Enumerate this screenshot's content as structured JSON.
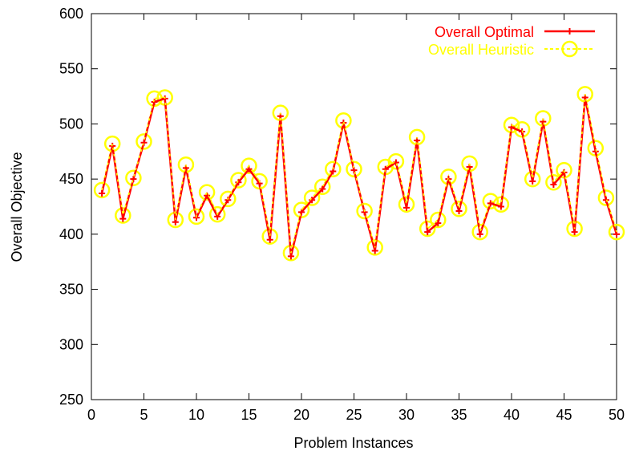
{
  "chart_data": {
    "type": "line",
    "xlabel": "Problem Instances",
    "ylabel": "Overall Objective",
    "xlim": [
      0,
      50
    ],
    "ylim": [
      250,
      600
    ],
    "xticks": [
      0,
      5,
      10,
      15,
      20,
      25,
      30,
      35,
      40,
      45,
      50
    ],
    "yticks": [
      250,
      300,
      350,
      400,
      450,
      500,
      550,
      600
    ],
    "grid": false,
    "legend_position": "top-right",
    "x": [
      1,
      2,
      3,
      4,
      5,
      6,
      7,
      8,
      9,
      10,
      11,
      12,
      13,
      14,
      15,
      16,
      17,
      18,
      19,
      20,
      21,
      22,
      23,
      24,
      25,
      26,
      27,
      28,
      29,
      30,
      31,
      32,
      33,
      34,
      35,
      36,
      37,
      38,
      39,
      40,
      41,
      42,
      43,
      44,
      45,
      46,
      47,
      48,
      49,
      50
    ],
    "series": [
      {
        "name": "Overall Optimal",
        "color": "#ff0000",
        "marker": "plus",
        "values": [
          437,
          480,
          414,
          450,
          483,
          520,
          523,
          411,
          460,
          415,
          435,
          416,
          431,
          447,
          459,
          446,
          395,
          507,
          380,
          420,
          431,
          441,
          457,
          501,
          458,
          420,
          385,
          459,
          465,
          424,
          485,
          402,
          410,
          450,
          421,
          461,
          400,
          428,
          425,
          497,
          493,
          448,
          502,
          445,
          456,
          402,
          524,
          475,
          431,
          400
        ]
      },
      {
        "name": "Overall Heuristic",
        "color": "#ffff00",
        "marker": "circle",
        "values": [
          440,
          482,
          417,
          451,
          484,
          523,
          524,
          413,
          463,
          416,
          438,
          418,
          432,
          449,
          462,
          448,
          398,
          510,
          383,
          422,
          433,
          443,
          459,
          503,
          459,
          421,
          388,
          461,
          466,
          427,
          488,
          405,
          413,
          452,
          423,
          464,
          402,
          430,
          427,
          499,
          495,
          450,
          505,
          447,
          458,
          405,
          527,
          478,
          433,
          402
        ]
      }
    ]
  }
}
